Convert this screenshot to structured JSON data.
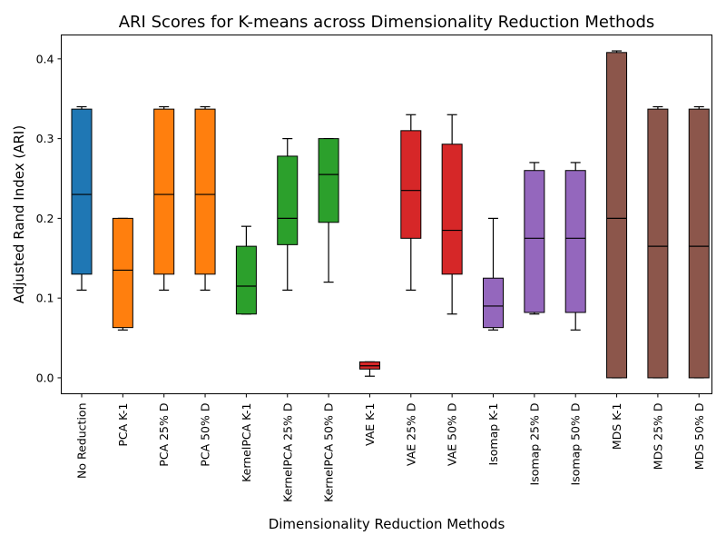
{
  "chart_data": {
    "type": "box",
    "title": "ARI Scores for K-means across Dimensionality Reduction Methods",
    "xlabel": "Dimensionality Reduction Methods",
    "ylabel": "Adjusted Rand Index (ARI)",
    "ylim": [
      -0.02,
      0.43
    ],
    "yticks": [
      0.0,
      0.1,
      0.2,
      0.3,
      0.4
    ],
    "ytick_labels": [
      "0.0",
      "0.1",
      "0.2",
      "0.3",
      "0.4"
    ],
    "grid": false,
    "categories": [
      "No Reduction",
      "PCA K-1",
      "PCA 25% D",
      "PCA 50% D",
      "KernelPCA K-1",
      "KernelPCA 25% D",
      "KernelPCA 50% D",
      "VAE K-1",
      "VAE 25% D",
      "VAE 50% D",
      "Isomap K-1",
      "Isomap 25% D",
      "Isomap 50% D",
      "MDS K-1",
      "MDS 25% D",
      "MDS 50% D"
    ],
    "boxes": [
      {
        "min": 0.11,
        "q1": 0.13,
        "median": 0.23,
        "q3": 0.337,
        "max": 0.34,
        "color": "#1f77b4"
      },
      {
        "min": 0.06,
        "q1": 0.063,
        "median": 0.135,
        "q3": 0.2,
        "max": 0.2,
        "color": "#ff7f0e"
      },
      {
        "min": 0.11,
        "q1": 0.13,
        "median": 0.23,
        "q3": 0.337,
        "max": 0.34,
        "color": "#ff7f0e"
      },
      {
        "min": 0.11,
        "q1": 0.13,
        "median": 0.23,
        "q3": 0.337,
        "max": 0.34,
        "color": "#ff7f0e"
      },
      {
        "min": 0.08,
        "q1": 0.08,
        "median": 0.115,
        "q3": 0.165,
        "max": 0.19,
        "color": "#2ca02c"
      },
      {
        "min": 0.11,
        "q1": 0.167,
        "median": 0.2,
        "q3": 0.278,
        "max": 0.3,
        "color": "#2ca02c"
      },
      {
        "min": 0.12,
        "q1": 0.195,
        "median": 0.255,
        "q3": 0.3,
        "max": 0.3,
        "color": "#2ca02c"
      },
      {
        "min": 0.002,
        "q1": 0.011,
        "median": 0.015,
        "q3": 0.02,
        "max": 0.02,
        "color": "#d62728"
      },
      {
        "min": 0.11,
        "q1": 0.175,
        "median": 0.235,
        "q3": 0.31,
        "max": 0.33,
        "color": "#d62728"
      },
      {
        "min": 0.08,
        "q1": 0.13,
        "median": 0.185,
        "q3": 0.293,
        "max": 0.33,
        "color": "#d62728"
      },
      {
        "min": 0.06,
        "q1": 0.063,
        "median": 0.09,
        "q3": 0.125,
        "max": 0.2,
        "color": "#9467bd"
      },
      {
        "min": 0.08,
        "q1": 0.082,
        "median": 0.175,
        "q3": 0.26,
        "max": 0.27,
        "color": "#9467bd"
      },
      {
        "min": 0.06,
        "q1": 0.082,
        "median": 0.175,
        "q3": 0.26,
        "max": 0.27,
        "color": "#9467bd"
      },
      {
        "min": 0.0,
        "q1": 0.0,
        "median": 0.2,
        "q3": 0.408,
        "max": 0.41,
        "color": "#8c564b"
      },
      {
        "min": 0.0,
        "q1": 0.0,
        "median": 0.165,
        "q3": 0.337,
        "max": 0.34,
        "color": "#8c564b"
      },
      {
        "min": 0.0,
        "q1": 0.0,
        "median": 0.165,
        "q3": 0.337,
        "max": 0.34,
        "color": "#8c564b"
      }
    ]
  }
}
